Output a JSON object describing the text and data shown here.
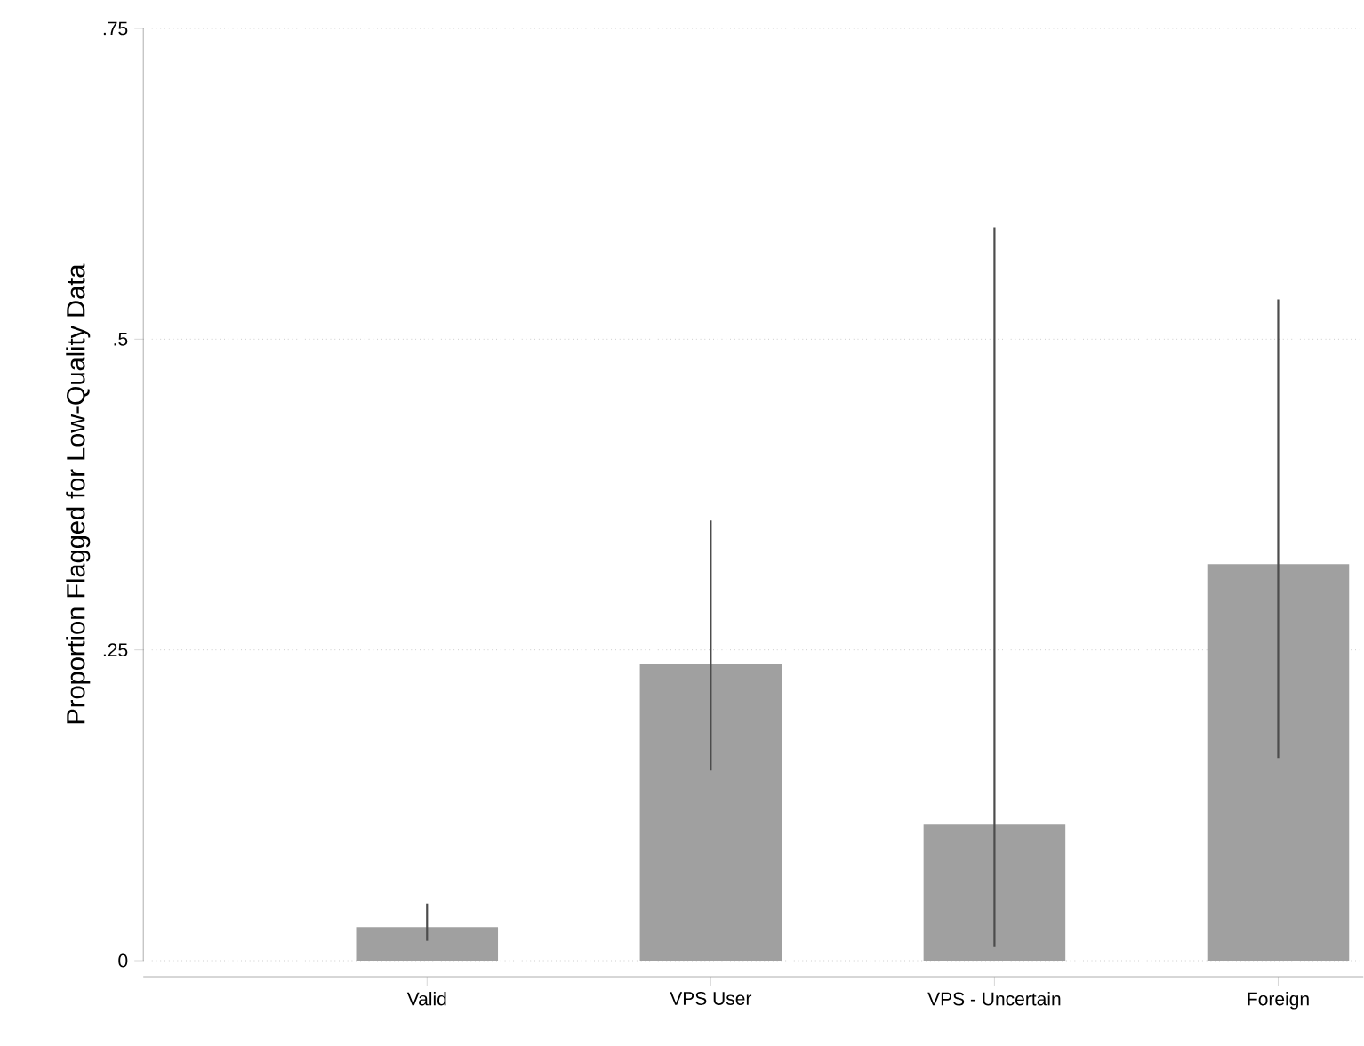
{
  "chart_data": {
    "type": "bar",
    "ylabel": "Proportion Flagged for Low-Quality Data",
    "categories": [
      "Valid",
      "VPS User",
      "VPS - Uncertain",
      "Foreign"
    ],
    "values": [
      0.027,
      0.239,
      0.11,
      0.319
    ],
    "errors": [
      [
        0.016,
        0.046
      ],
      [
        0.153,
        0.354
      ],
      [
        0.011,
        0.59
      ],
      [
        0.163,
        0.532
      ]
    ],
    "color": "#a0a0a0",
    "ylim": [
      0,
      0.75
    ],
    "yticks": [
      {
        "value": 0,
        "label": "0"
      },
      {
        "value": 0.25,
        "label": ".25"
      },
      {
        "value": 0.5,
        "label": ".5"
      },
      {
        "value": 0.75,
        "label": ".75"
      }
    ],
    "grid": "y"
  }
}
